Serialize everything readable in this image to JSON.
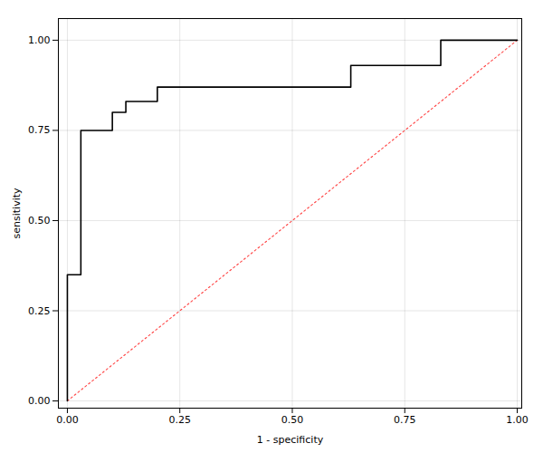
{
  "chart_data": {
    "type": "line",
    "xlabel": "1 - specificity",
    "ylabel": "sensitivity",
    "series": [
      {
        "type": "line",
        "color": "#FF4444",
        "line_style": "dotted",
        "x": [
          0.0,
          1.0
        ],
        "values": [
          0.0,
          1.0
        ]
      },
      {
        "type": "step",
        "color": "#000000",
        "line_style": "solid",
        "x": [
          0.0,
          0.0,
          0.0,
          0.03,
          0.03,
          0.1,
          0.1,
          0.13,
          0.13,
          0.2,
          0.2,
          0.63,
          0.63,
          0.83,
          0.83,
          0.9,
          0.9,
          1.0
        ],
        "values": [
          0.0,
          0.2,
          0.35,
          0.35,
          0.75,
          0.75,
          0.8,
          0.8,
          0.83,
          0.83,
          0.87,
          0.87,
          0.93,
          0.93,
          1.0,
          1.0,
          1.0,
          1.0
        ]
      }
    ],
    "xlim": [
      -0.02,
      1.01
    ],
    "ylim": [
      -0.02,
      1.06
    ],
    "xticks": [
      {
        "value": 0,
        "label": "0.00"
      },
      {
        "value": 0.25,
        "label": "0.25"
      },
      {
        "value": 0.5,
        "label": "0.50"
      },
      {
        "value": 0.75,
        "label": "0.75"
      },
      {
        "value": 1,
        "label": "1.00"
      }
    ],
    "yticks": [
      {
        "value": 0,
        "label": "0.00"
      },
      {
        "value": 0.25,
        "label": "0.25"
      },
      {
        "value": 0.5,
        "label": "0.50"
      },
      {
        "value": 0.75,
        "label": "0.75"
      },
      {
        "value": 1,
        "label": "1.00"
      }
    ],
    "grid": true
  }
}
